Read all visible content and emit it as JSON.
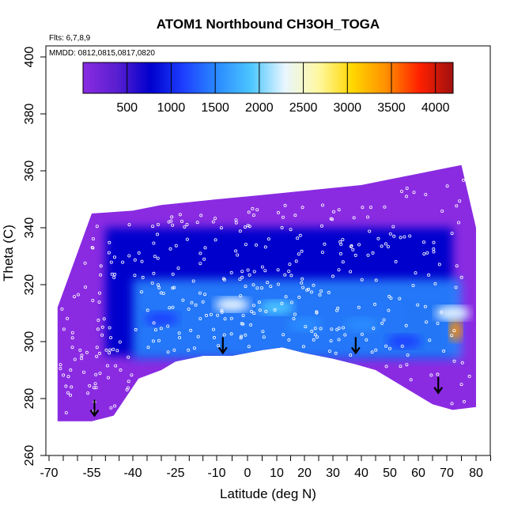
{
  "colors": {
    "scale": [
      "#8a2be2",
      "#5a1fd0",
      "#0000cd",
      "#1e40ff",
      "#2a8cff",
      "#4cc6ff",
      "#e8f6ff",
      "#fff8a0",
      "#ffd700",
      "#ff9000",
      "#ff2000",
      "#a01010"
    ],
    "background_fill": "#8a2be2",
    "point_stroke": "#ffffff",
    "arrow": "#000000"
  },
  "chart_data": {
    "type": "heatmap",
    "title": "ATOM1 Northbound CH3OH_TOGA",
    "flights_note": "Flts: 6,7,8,9",
    "dates_note": "MMDD: 0812,0815,0817,0820",
    "xlabel": "Latitude (deg N)",
    "ylabel": "Theta (C)",
    "xlim": [
      -70,
      85
    ],
    "ylim": [
      260,
      405
    ],
    "x_ticks": [
      -70,
      -55,
      -40,
      -25,
      -10,
      0,
      10,
      20,
      30,
      40,
      50,
      60,
      70,
      80
    ],
    "y_ticks": [
      260,
      280,
      300,
      320,
      340,
      360,
      380,
      400
    ],
    "colorbar": {
      "range": [
        0,
        4200
      ],
      "ticks": [
        500,
        1000,
        1500,
        2000,
        2500,
        3000,
        3500,
        4000
      ],
      "placement": "top"
    },
    "domain_upper": [
      [
        -67,
        312
      ],
      [
        -55,
        345
      ],
      [
        -40,
        346
      ],
      [
        -30,
        348
      ],
      [
        -20,
        349
      ],
      [
        -10,
        350
      ],
      [
        0,
        351
      ],
      [
        10,
        352
      ],
      [
        20,
        353
      ],
      [
        30,
        354
      ],
      [
        40,
        355
      ],
      [
        50,
        357
      ],
      [
        60,
        359
      ],
      [
        70,
        361
      ],
      [
        75,
        362
      ]
    ],
    "domain_lower": [
      [
        -67,
        272
      ],
      [
        -55,
        272
      ],
      [
        -47,
        274
      ],
      [
        -38,
        287
      ],
      [
        -30,
        290
      ],
      [
        -25,
        293
      ],
      [
        -15,
        295
      ],
      [
        -5,
        295
      ],
      [
        5,
        297
      ],
      [
        12,
        298
      ],
      [
        20,
        296
      ],
      [
        30,
        294
      ],
      [
        38,
        292
      ],
      [
        45,
        290
      ],
      [
        55,
        284
      ],
      [
        65,
        278
      ],
      [
        72,
        276
      ],
      [
        80,
        277
      ],
      [
        80,
        340
      ]
    ],
    "hotspots": [
      {
        "lat": 73,
        "theta": 304,
        "value": 3600
      },
      {
        "lat": 72,
        "theta": 310,
        "value": 2200
      },
      {
        "lat": -5,
        "theta": 313,
        "value": 2200
      },
      {
        "lat": 10,
        "theta": 312,
        "value": 1800
      },
      {
        "lat": 20,
        "theta": 306,
        "value": 1600
      },
      {
        "lat": 40,
        "theta": 306,
        "value": 1500
      },
      {
        "lat": -30,
        "theta": 308,
        "value": 1200
      },
      {
        "lat": 55,
        "theta": 300,
        "value": 1300
      }
    ],
    "arrows": [
      {
        "lat": -54,
        "theta": 274
      },
      {
        "lat": -8,
        "theta": 296
      },
      {
        "lat": 38,
        "theta": 296
      },
      {
        "lat": 67,
        "theta": 282
      }
    ]
  }
}
